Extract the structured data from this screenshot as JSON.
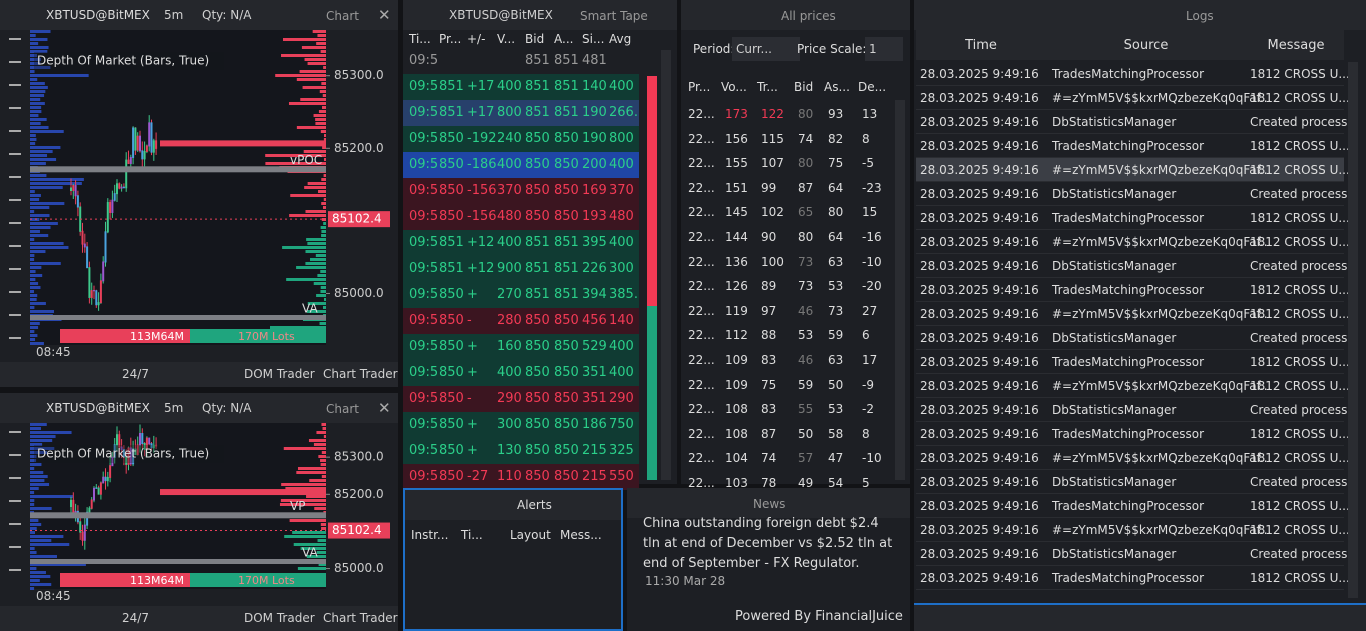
{
  "charts": [
    {
      "instrument": "XBTUSD@BitMEX",
      "timeframe": "5m",
      "qty": "Qty: N/A",
      "tab": "Chart",
      "overlay": "Depth Of Market (Bars, True)",
      "ylim": [
        84929,
        85363
      ],
      "yticks": [
        {
          "value": 85300,
          "label": "85300.0"
        },
        {
          "value": 85200,
          "label": "85200.0"
        },
        {
          "value": 85000,
          "label": "85000.0"
        }
      ],
      "last": {
        "value": 85102.4,
        "label": "85102.4"
      },
      "poc": "vPOC",
      "va": "VA",
      "volumes": "113M64M",
      "lots": "170M Lots",
      "time": "08:45",
      "session": "24/7",
      "buttons": [
        "DOM Trader",
        "Chart Trader"
      ]
    },
    {
      "instrument": "XBTUSD@BitMEX",
      "timeframe": "5m",
      "qty": "Qty: N/A",
      "tab": "Chart",
      "overlay": "Depth Of Market (Bars, True)",
      "ylim": [
        84945,
        85392
      ],
      "yticks": [
        {
          "value": 85300,
          "label": "85300.0"
        },
        {
          "value": 85200,
          "label": "85200.0"
        },
        {
          "value": 85000,
          "label": "85000.0"
        }
      ],
      "last": {
        "value": 85102.4,
        "label": "85102.4"
      },
      "poc": "VP",
      "va": "VA",
      "volumes": "113M64M",
      "lots": "170M Lots",
      "time": "08:45",
      "session": "24/7",
      "buttons": [
        "DOM Trader",
        "Chart Trader"
      ]
    }
  ],
  "tape": {
    "instrument": "XBTUSD@BitMEX",
    "title": "Smart Tape",
    "columns": [
      "Ti...",
      "Pr...",
      "+/-",
      "V...",
      "Bid",
      "A...",
      "Si...",
      "Avg"
    ],
    "rows": [
      {
        "style": "plain",
        "cells": [
          "09:5",
          null,
          null,
          null,
          "851",
          "851",
          "481",
          null
        ]
      },
      {
        "style": "buy",
        "cells": [
          "09:5",
          "851",
          "+17",
          "400",
          "851",
          "851",
          "140",
          "400"
        ]
      },
      {
        "style": "highlight",
        "cells": [
          "09:5",
          "851",
          "+17",
          "800",
          "851",
          "851",
          "190",
          "266."
        ]
      },
      {
        "style": "buy",
        "cells": [
          "09:5",
          "850",
          "-192",
          "240",
          "850",
          "850",
          "190",
          "800"
        ]
      },
      {
        "style": "selected",
        "cells": [
          "09:5",
          "850",
          "-186",
          "400",
          "850",
          "850",
          "200",
          "400"
        ]
      },
      {
        "style": "sell",
        "cells": [
          "09:5",
          "850",
          "-156",
          "370",
          "850",
          "850",
          "169",
          "370"
        ]
      },
      {
        "style": "sell",
        "cells": [
          "09:5",
          "850",
          "-156",
          "480",
          "850",
          "850",
          "193",
          "480"
        ]
      },
      {
        "style": "buy",
        "cells": [
          "09:5",
          "851",
          "+12",
          "400",
          "851",
          "851",
          "395",
          "400"
        ]
      },
      {
        "style": "buy",
        "cells": [
          "09:5",
          "851",
          "+12",
          "900",
          "851",
          "851",
          "226",
          "300"
        ]
      },
      {
        "style": "buy",
        "cells": [
          "09:5",
          "850",
          "+",
          "270",
          "851",
          "851",
          "394",
          "385."
        ]
      },
      {
        "style": "sell",
        "cells": [
          "09:5",
          "850",
          "-",
          "280",
          "850",
          "850",
          "456",
          "140"
        ]
      },
      {
        "style": "buy",
        "cells": [
          "09:5",
          "850",
          "+",
          "160",
          "850",
          "850",
          "529",
          "400"
        ]
      },
      {
        "style": "buy",
        "cells": [
          "09:5",
          "850",
          "+",
          "400",
          "850",
          "850",
          "351",
          "400"
        ]
      },
      {
        "style": "sell",
        "cells": [
          "09:5",
          "850",
          "-",
          "290",
          "850",
          "850",
          "351",
          "290"
        ]
      },
      {
        "style": "buy",
        "cells": [
          "09:5",
          "850",
          "+",
          "300",
          "850",
          "850",
          "186",
          "750"
        ]
      },
      {
        "style": "buy",
        "cells": [
          "09:5",
          "850",
          "+",
          "130",
          "850",
          "850",
          "215",
          "325"
        ]
      },
      {
        "style": "sell",
        "cells": [
          "09:5",
          "850",
          "-27",
          "110",
          "850",
          "850",
          "215",
          "550"
        ]
      }
    ]
  },
  "prices": {
    "title": "All prices",
    "period_label": "Period:",
    "period": "Curr...",
    "scale_label": "Price Scale:",
    "scale": "1",
    "columns": [
      "Pr...",
      "Vo...",
      "Tr...",
      "Bid",
      "As...",
      "De..."
    ],
    "rows": [
      [
        "22...",
        "173",
        "122",
        "80",
        "93",
        "13"
      ],
      [
        "22...",
        "156",
        "115",
        "74",
        "82",
        "8"
      ],
      [
        "22...",
        "155",
        "107",
        "80",
        "75",
        "-5"
      ],
      [
        "22...",
        "151",
        "99",
        "87",
        "64",
        "-23"
      ],
      [
        "22...",
        "145",
        "102",
        "65",
        "80",
        "15"
      ],
      [
        "22...",
        "144",
        "90",
        "80",
        "64",
        "-16"
      ],
      [
        "22...",
        "136",
        "100",
        "73",
        "63",
        "-10"
      ],
      [
        "22...",
        "126",
        "89",
        "73",
        "53",
        "-20"
      ],
      [
        "22...",
        "119",
        "97",
        "46",
        "73",
        "27"
      ],
      [
        "22...",
        "112",
        "88",
        "53",
        "59",
        "6"
      ],
      [
        "22...",
        "109",
        "83",
        "46",
        "63",
        "17"
      ],
      [
        "22...",
        "109",
        "75",
        "59",
        "50",
        "-9"
      ],
      [
        "22...",
        "108",
        "83",
        "55",
        "53",
        "-2"
      ],
      [
        "22...",
        "108",
        "87",
        "50",
        "58",
        "8"
      ],
      [
        "22...",
        "104",
        "74",
        "57",
        "47",
        "-10"
      ],
      [
        "22...",
        "103",
        "78",
        "49",
        "54",
        "5"
      ]
    ]
  },
  "alerts": {
    "title": "Alerts",
    "columns": [
      "Instr...",
      "Ti...",
      "Layout",
      "Mess..."
    ]
  },
  "news": {
    "title": "News",
    "headline": "China outstanding foreign debt $2.4 tln at end of December vs $2.52 tln at end of September - FX Regulator.",
    "time": "11:30 Mar 28",
    "footer": "Powered By FinancialJuice"
  },
  "logs": {
    "title": "Logs",
    "columns": [
      "Time",
      "Source",
      "Message"
    ],
    "selected": 4,
    "rows": [
      [
        "28.03.2025 9:49:16",
        "TradesMatchingProcessor",
        "1812 CROSS U..."
      ],
      [
        "28.03.2025 9:49:16",
        "#=zYmM5V$$kxrMQzbezeKq0qFaf...",
        "1812 CROSS U..."
      ],
      [
        "28.03.2025 9:49:16",
        "DbStatisticsManager",
        "Created process..."
      ],
      [
        "28.03.2025 9:49:16",
        "TradesMatchingProcessor",
        "1812 CROSS U..."
      ],
      [
        "28.03.2025 9:49:16",
        "#=zYmM5V$$kxrMQzbezeKq0qFaf...",
        "1812 CROSS U..."
      ],
      [
        "28.03.2025 9:49:16",
        "DbStatisticsManager",
        "Created process..."
      ],
      [
        "28.03.2025 9:49:16",
        "TradesMatchingProcessor",
        "1812 CROSS U..."
      ],
      [
        "28.03.2025 9:49:16",
        "#=zYmM5V$$kxrMQzbezeKq0qFaf...",
        "1812 CROSS U..."
      ],
      [
        "28.03.2025 9:49:16",
        "DbStatisticsManager",
        "Created process..."
      ],
      [
        "28.03.2025 9:49:16",
        "TradesMatchingProcessor",
        "1812 CROSS U..."
      ],
      [
        "28.03.2025 9:49:16",
        "#=zYmM5V$$kxrMQzbezeKq0qFaf...",
        "1812 CROSS U..."
      ],
      [
        "28.03.2025 9:49:16",
        "DbStatisticsManager",
        "Created process..."
      ],
      [
        "28.03.2025 9:49:16",
        "TradesMatchingProcessor",
        "1812 CROSS U..."
      ],
      [
        "28.03.2025 9:49:16",
        "#=zYmM5V$$kxrMQzbezeKq0qFaf...",
        "1812 CROSS U..."
      ],
      [
        "28.03.2025 9:49:16",
        "DbStatisticsManager",
        "Created process..."
      ],
      [
        "28.03.2025 9:49:16",
        "TradesMatchingProcessor",
        "1812 CROSS U..."
      ],
      [
        "28.03.2025 9:49:16",
        "#=zYmM5V$$kxrMQzbezeKq0qFaf...",
        "1812 CROSS U..."
      ],
      [
        "28.03.2025 9:49:16",
        "DbStatisticsManager",
        "Created process..."
      ],
      [
        "28.03.2025 9:49:16",
        "TradesMatchingProcessor",
        "1812 CROSS U..."
      ],
      [
        "28.03.2025 9:49:16",
        "#=zYmM5V$$kxrMQzbezeKq0qFaf...",
        "1812 CROSS U..."
      ],
      [
        "28.03.2025 9:49:16",
        "DbStatisticsManager",
        "Created process..."
      ],
      [
        "28.03.2025 9:49:16",
        "TradesMatchingProcessor",
        "1812 CROSS U..."
      ]
    ]
  }
}
